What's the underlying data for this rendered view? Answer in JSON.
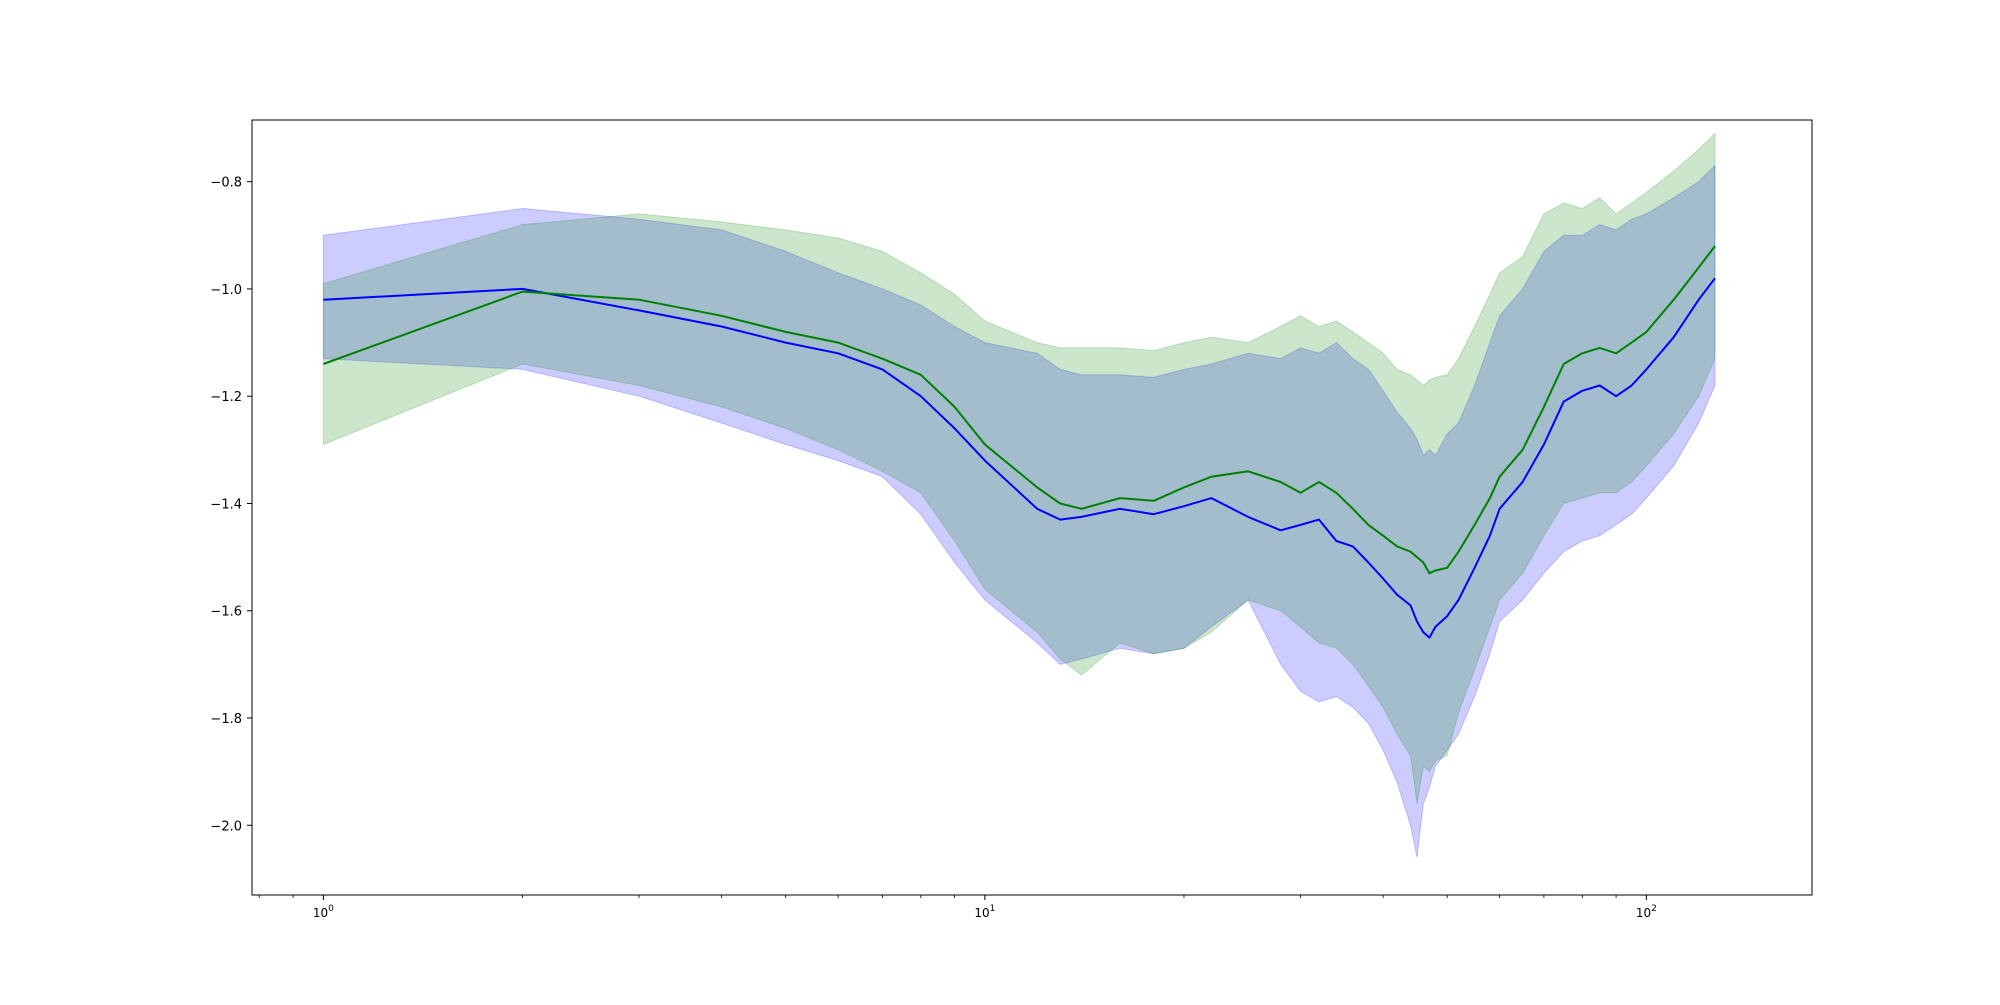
{
  "chart_data": {
    "type": "line",
    "title": "",
    "xlabel": "",
    "ylabel": "",
    "xscale": "log",
    "xlim": [
      0.78,
      178
    ],
    "ylim": [
      -2.13,
      -0.685
    ],
    "x_ticks": [
      {
        "value": 1,
        "base": "10",
        "exp": "0"
      },
      {
        "value": 10,
        "base": "10",
        "exp": "1"
      },
      {
        "value": 100,
        "base": "10",
        "exp": "2"
      }
    ],
    "y_ticks": [
      {
        "value": -0.8,
        "label": "−0.8"
      },
      {
        "value": -1.0,
        "label": "−1.0"
      },
      {
        "value": -1.2,
        "label": "−1.2"
      },
      {
        "value": -1.4,
        "label": "−1.4"
      },
      {
        "value": -1.6,
        "label": "−1.6"
      },
      {
        "value": -1.8,
        "label": "−1.8"
      },
      {
        "value": -2.0,
        "label": "−2.0"
      }
    ],
    "grid": false,
    "legend": "none",
    "series": [
      {
        "color": "#0000ff",
        "band_alpha": 0.2,
        "x": [
          1,
          2,
          3,
          4,
          5,
          6,
          7,
          8,
          9,
          10,
          12,
          13,
          14,
          16,
          18,
          20,
          22,
          25,
          28,
          30,
          32,
          34,
          36,
          38,
          40,
          42,
          44,
          45,
          46,
          47,
          48,
          50,
          52,
          55,
          58,
          60,
          65,
          70,
          75,
          80,
          85,
          90,
          95,
          100,
          110,
          120,
          127
        ],
        "y": [
          -1.02,
          -1.0,
          -1.04,
          -1.07,
          -1.1,
          -1.12,
          -1.15,
          -1.2,
          -1.26,
          -1.32,
          -1.41,
          -1.43,
          -1.425,
          -1.41,
          -1.42,
          -1.405,
          -1.39,
          -1.425,
          -1.45,
          -1.44,
          -1.43,
          -1.47,
          -1.48,
          -1.51,
          -1.54,
          -1.57,
          -1.59,
          -1.62,
          -1.64,
          -1.65,
          -1.63,
          -1.61,
          -1.58,
          -1.52,
          -1.46,
          -1.41,
          -1.36,
          -1.29,
          -1.21,
          -1.19,
          -1.18,
          -1.2,
          -1.18,
          -1.15,
          -1.09,
          -1.02,
          -0.98
        ],
        "lower": [
          -1.13,
          -1.15,
          -1.2,
          -1.25,
          -1.29,
          -1.32,
          -1.35,
          -1.42,
          -1.51,
          -1.58,
          -1.66,
          -1.7,
          -1.69,
          -1.67,
          -1.68,
          -1.67,
          -1.63,
          -1.58,
          -1.7,
          -1.75,
          -1.77,
          -1.76,
          -1.78,
          -1.81,
          -1.86,
          -1.92,
          -2.0,
          -2.06,
          -1.96,
          -1.93,
          -1.89,
          -1.86,
          -1.83,
          -1.76,
          -1.68,
          -1.62,
          -1.58,
          -1.53,
          -1.49,
          -1.47,
          -1.46,
          -1.44,
          -1.42,
          -1.39,
          -1.33,
          -1.25,
          -1.18
        ],
        "upper": [
          -0.9,
          -0.85,
          -0.87,
          -0.89,
          -0.93,
          -0.97,
          -1.0,
          -1.03,
          -1.07,
          -1.1,
          -1.12,
          -1.15,
          -1.16,
          -1.16,
          -1.165,
          -1.15,
          -1.14,
          -1.12,
          -1.13,
          -1.11,
          -1.12,
          -1.1,
          -1.13,
          -1.15,
          -1.19,
          -1.23,
          -1.26,
          -1.28,
          -1.31,
          -1.3,
          -1.31,
          -1.27,
          -1.25,
          -1.18,
          -1.1,
          -1.05,
          -1.0,
          -0.93,
          -0.9,
          -0.9,
          -0.88,
          -0.89,
          -0.87,
          -0.86,
          -0.83,
          -0.8,
          -0.77
        ]
      },
      {
        "color": "#008000",
        "band_alpha": 0.2,
        "x": [
          1,
          2,
          3,
          4,
          5,
          6,
          7,
          8,
          9,
          10,
          12,
          13,
          14,
          16,
          18,
          20,
          22,
          25,
          28,
          30,
          32,
          34,
          36,
          38,
          40,
          42,
          44,
          45,
          46,
          47,
          48,
          50,
          52,
          55,
          58,
          60,
          65,
          70,
          75,
          80,
          85,
          90,
          95,
          100,
          110,
          120,
          127
        ],
        "y": [
          -1.14,
          -1.005,
          -1.02,
          -1.05,
          -1.08,
          -1.1,
          -1.13,
          -1.16,
          -1.22,
          -1.29,
          -1.37,
          -1.4,
          -1.41,
          -1.39,
          -1.395,
          -1.37,
          -1.35,
          -1.34,
          -1.36,
          -1.38,
          -1.36,
          -1.38,
          -1.41,
          -1.44,
          -1.46,
          -1.48,
          -1.49,
          -1.5,
          -1.51,
          -1.53,
          -1.525,
          -1.52,
          -1.49,
          -1.44,
          -1.39,
          -1.35,
          -1.3,
          -1.22,
          -1.14,
          -1.12,
          -1.11,
          -1.12,
          -1.1,
          -1.08,
          -1.02,
          -0.96,
          -0.92
        ],
        "lower": [
          -1.29,
          -1.14,
          -1.18,
          -1.22,
          -1.26,
          -1.3,
          -1.34,
          -1.38,
          -1.47,
          -1.56,
          -1.64,
          -1.69,
          -1.72,
          -1.66,
          -1.68,
          -1.67,
          -1.64,
          -1.58,
          -1.6,
          -1.63,
          -1.66,
          -1.67,
          -1.7,
          -1.74,
          -1.78,
          -1.83,
          -1.87,
          -1.96,
          -1.89,
          -1.9,
          -1.88,
          -1.87,
          -1.79,
          -1.71,
          -1.63,
          -1.58,
          -1.53,
          -1.46,
          -1.4,
          -1.39,
          -1.38,
          -1.38,
          -1.36,
          -1.33,
          -1.27,
          -1.2,
          -1.13
        ],
        "upper": [
          -0.99,
          -0.88,
          -0.86,
          -0.875,
          -0.89,
          -0.905,
          -0.93,
          -0.97,
          -1.01,
          -1.06,
          -1.1,
          -1.11,
          -1.11,
          -1.11,
          -1.115,
          -1.1,
          -1.09,
          -1.1,
          -1.07,
          -1.05,
          -1.07,
          -1.06,
          -1.08,
          -1.1,
          -1.12,
          -1.15,
          -1.16,
          -1.17,
          -1.18,
          -1.17,
          -1.165,
          -1.16,
          -1.13,
          -1.07,
          -1.01,
          -0.97,
          -0.94,
          -0.86,
          -0.84,
          -0.85,
          -0.83,
          -0.86,
          -0.84,
          -0.82,
          -0.78,
          -0.74,
          -0.71
        ]
      }
    ]
  }
}
